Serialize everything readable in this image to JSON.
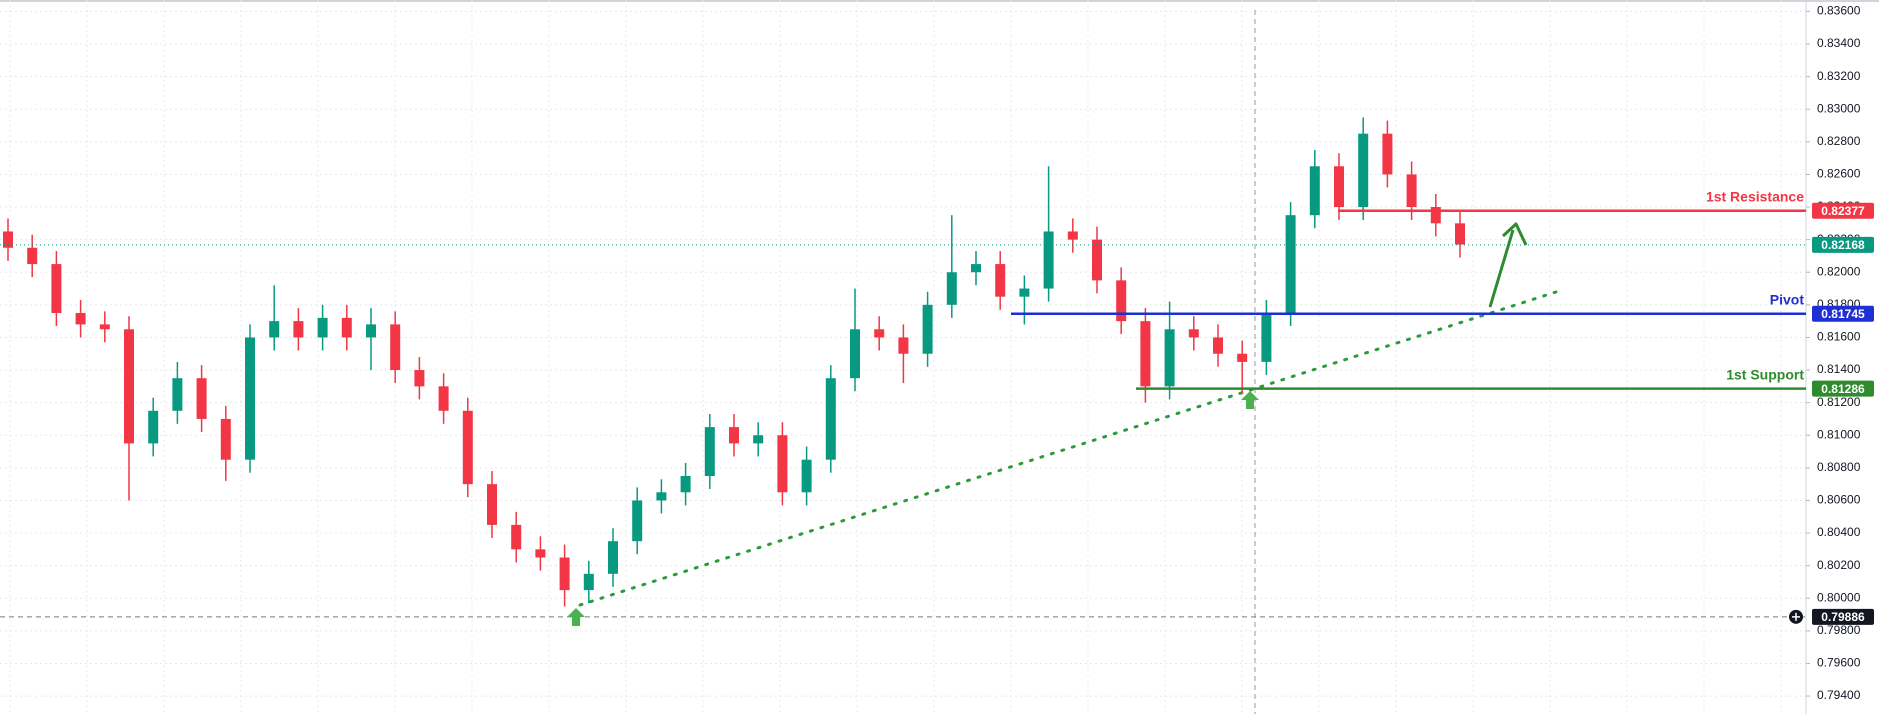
{
  "chart_data": {
    "type": "candlestick",
    "up_color": "#089981",
    "down_color": "#f23645",
    "open": [
      0.8225,
      0.8215,
      0.8205,
      0.8175,
      0.8168,
      0.8165,
      0.8095,
      0.8115,
      0.8135,
      0.811,
      0.8085,
      0.816,
      0.817,
      0.816,
      0.8172,
      0.816,
      0.8168,
      0.814,
      0.813,
      0.8115,
      0.807,
      0.8045,
      0.803,
      0.8025,
      0.8005,
      0.8015,
      0.8035,
      0.806,
      0.8065,
      0.8075,
      0.8105,
      0.8095,
      0.81,
      0.8065,
      0.8085,
      0.8135,
      0.8165,
      0.816,
      0.815,
      0.818,
      0.82,
      0.8205,
      0.8185,
      0.819,
      0.8225,
      0.822,
      0.8195,
      0.817,
      0.813,
      0.8165,
      0.816,
      0.815,
      0.8145,
      0.8175,
      0.8235,
      0.8265,
      0.824,
      0.8285,
      0.826,
      0.824,
      0.823
    ],
    "high": [
      0.8233,
      0.8223,
      0.8213,
      0.8183,
      0.8176,
      0.8173,
      0.8123,
      0.8145,
      0.8143,
      0.8118,
      0.8168,
      0.8192,
      0.8178,
      0.818,
      0.818,
      0.8178,
      0.8176,
      0.8148,
      0.8138,
      0.8123,
      0.8078,
      0.8053,
      0.8038,
      0.8033,
      0.8023,
      0.8043,
      0.8068,
      0.8073,
      0.8083,
      0.8113,
      0.8113,
      0.8108,
      0.8108,
      0.8093,
      0.8143,
      0.819,
      0.8173,
      0.8168,
      0.8188,
      0.8235,
      0.8213,
      0.8213,
      0.8198,
      0.8265,
      0.8233,
      0.8228,
      0.8203,
      0.8178,
      0.8182,
      0.8173,
      0.8168,
      0.8158,
      0.8183,
      0.8243,
      0.8275,
      0.8273,
      0.8295,
      0.8293,
      0.8268,
      0.8248,
      0.8238
    ],
    "low": [
      0.8207,
      0.8197,
      0.8167,
      0.816,
      0.8157,
      0.806,
      0.8087,
      0.8107,
      0.8102,
      0.8072,
      0.8077,
      0.8152,
      0.8152,
      0.8152,
      0.8152,
      0.814,
      0.8132,
      0.8122,
      0.8107,
      0.8062,
      0.8037,
      0.8022,
      0.8017,
      0.7995,
      0.7997,
      0.8007,
      0.8027,
      0.8052,
      0.8057,
      0.8067,
      0.8087,
      0.8087,
      0.8057,
      0.8057,
      0.8077,
      0.8127,
      0.8152,
      0.8132,
      0.8142,
      0.8172,
      0.8192,
      0.8177,
      0.8168,
      0.8182,
      0.8212,
      0.8187,
      0.8162,
      0.812,
      0.8122,
      0.8152,
      0.8142,
      0.8126,
      0.8137,
      0.8167,
      0.8227,
      0.8232,
      0.8232,
      0.8252,
      0.8232,
      0.8222,
      0.8209
    ],
    "close": [
      0.8215,
      0.8205,
      0.8175,
      0.8168,
      0.8165,
      0.8095,
      0.8115,
      0.8135,
      0.811,
      0.8085,
      0.816,
      0.817,
      0.816,
      0.8172,
      0.816,
      0.8168,
      0.814,
      0.813,
      0.8115,
      0.807,
      0.8045,
      0.803,
      0.8025,
      0.8005,
      0.8015,
      0.8035,
      0.806,
      0.8065,
      0.8075,
      0.8105,
      0.8095,
      0.81,
      0.8065,
      0.8085,
      0.8135,
      0.8165,
      0.816,
      0.815,
      0.818,
      0.82,
      0.8205,
      0.8185,
      0.819,
      0.8225,
      0.822,
      0.8195,
      0.817,
      0.813,
      0.8165,
      0.816,
      0.815,
      0.8145,
      0.8175,
      0.8235,
      0.8265,
      0.824,
      0.8285,
      0.826,
      0.824,
      0.823,
      0.8217
    ],
    "ylim": [
      0.7929,
      0.8367
    ],
    "yticks": [
      {
        "value": 0.794,
        "label": "0.79400"
      },
      {
        "value": 0.796,
        "label": "0.79600"
      },
      {
        "value": 0.798,
        "label": "0.79800"
      },
      {
        "value": 0.8,
        "label": "0.80000"
      },
      {
        "value": 0.802,
        "label": "0.80200"
      },
      {
        "value": 0.804,
        "label": "0.80400"
      },
      {
        "value": 0.806,
        "label": "0.80600"
      },
      {
        "value": 0.808,
        "label": "0.80800"
      },
      {
        "value": 0.81,
        "label": "0.81000"
      },
      {
        "value": 0.812,
        "label": "0.81200"
      },
      {
        "value": 0.814,
        "label": "0.81400"
      },
      {
        "value": 0.816,
        "label": "0.81600"
      },
      {
        "value": 0.818,
        "label": "0.81800"
      },
      {
        "value": 0.82,
        "label": "0.82000"
      },
      {
        "value": 0.822,
        "label": "0.82200"
      },
      {
        "value": 0.824,
        "label": "0.82400"
      },
      {
        "value": 0.826,
        "label": "0.82600"
      },
      {
        "value": 0.828,
        "label": "0.82800"
      },
      {
        "value": 0.83,
        "label": "0.83000"
      },
      {
        "value": 0.832,
        "label": "0.83200"
      },
      {
        "value": 0.834,
        "label": "0.83400"
      },
      {
        "value": 0.836,
        "label": "0.83600"
      }
    ],
    "grid": true,
    "levels": [
      {
        "label": "1st Resistance",
        "value": 0.82377,
        "color": "#f23645"
      },
      {
        "label": "Pivot",
        "value": 0.81745,
        "color": "#1f2fd6"
      },
      {
        "label": "1st Support",
        "value": 0.81286,
        "color": "#2e8b2e"
      }
    ],
    "current_price": {
      "value": 0.82168,
      "color": "#089981"
    },
    "crosshair_price": {
      "value": 0.79886,
      "color": "#131722"
    }
  }
}
